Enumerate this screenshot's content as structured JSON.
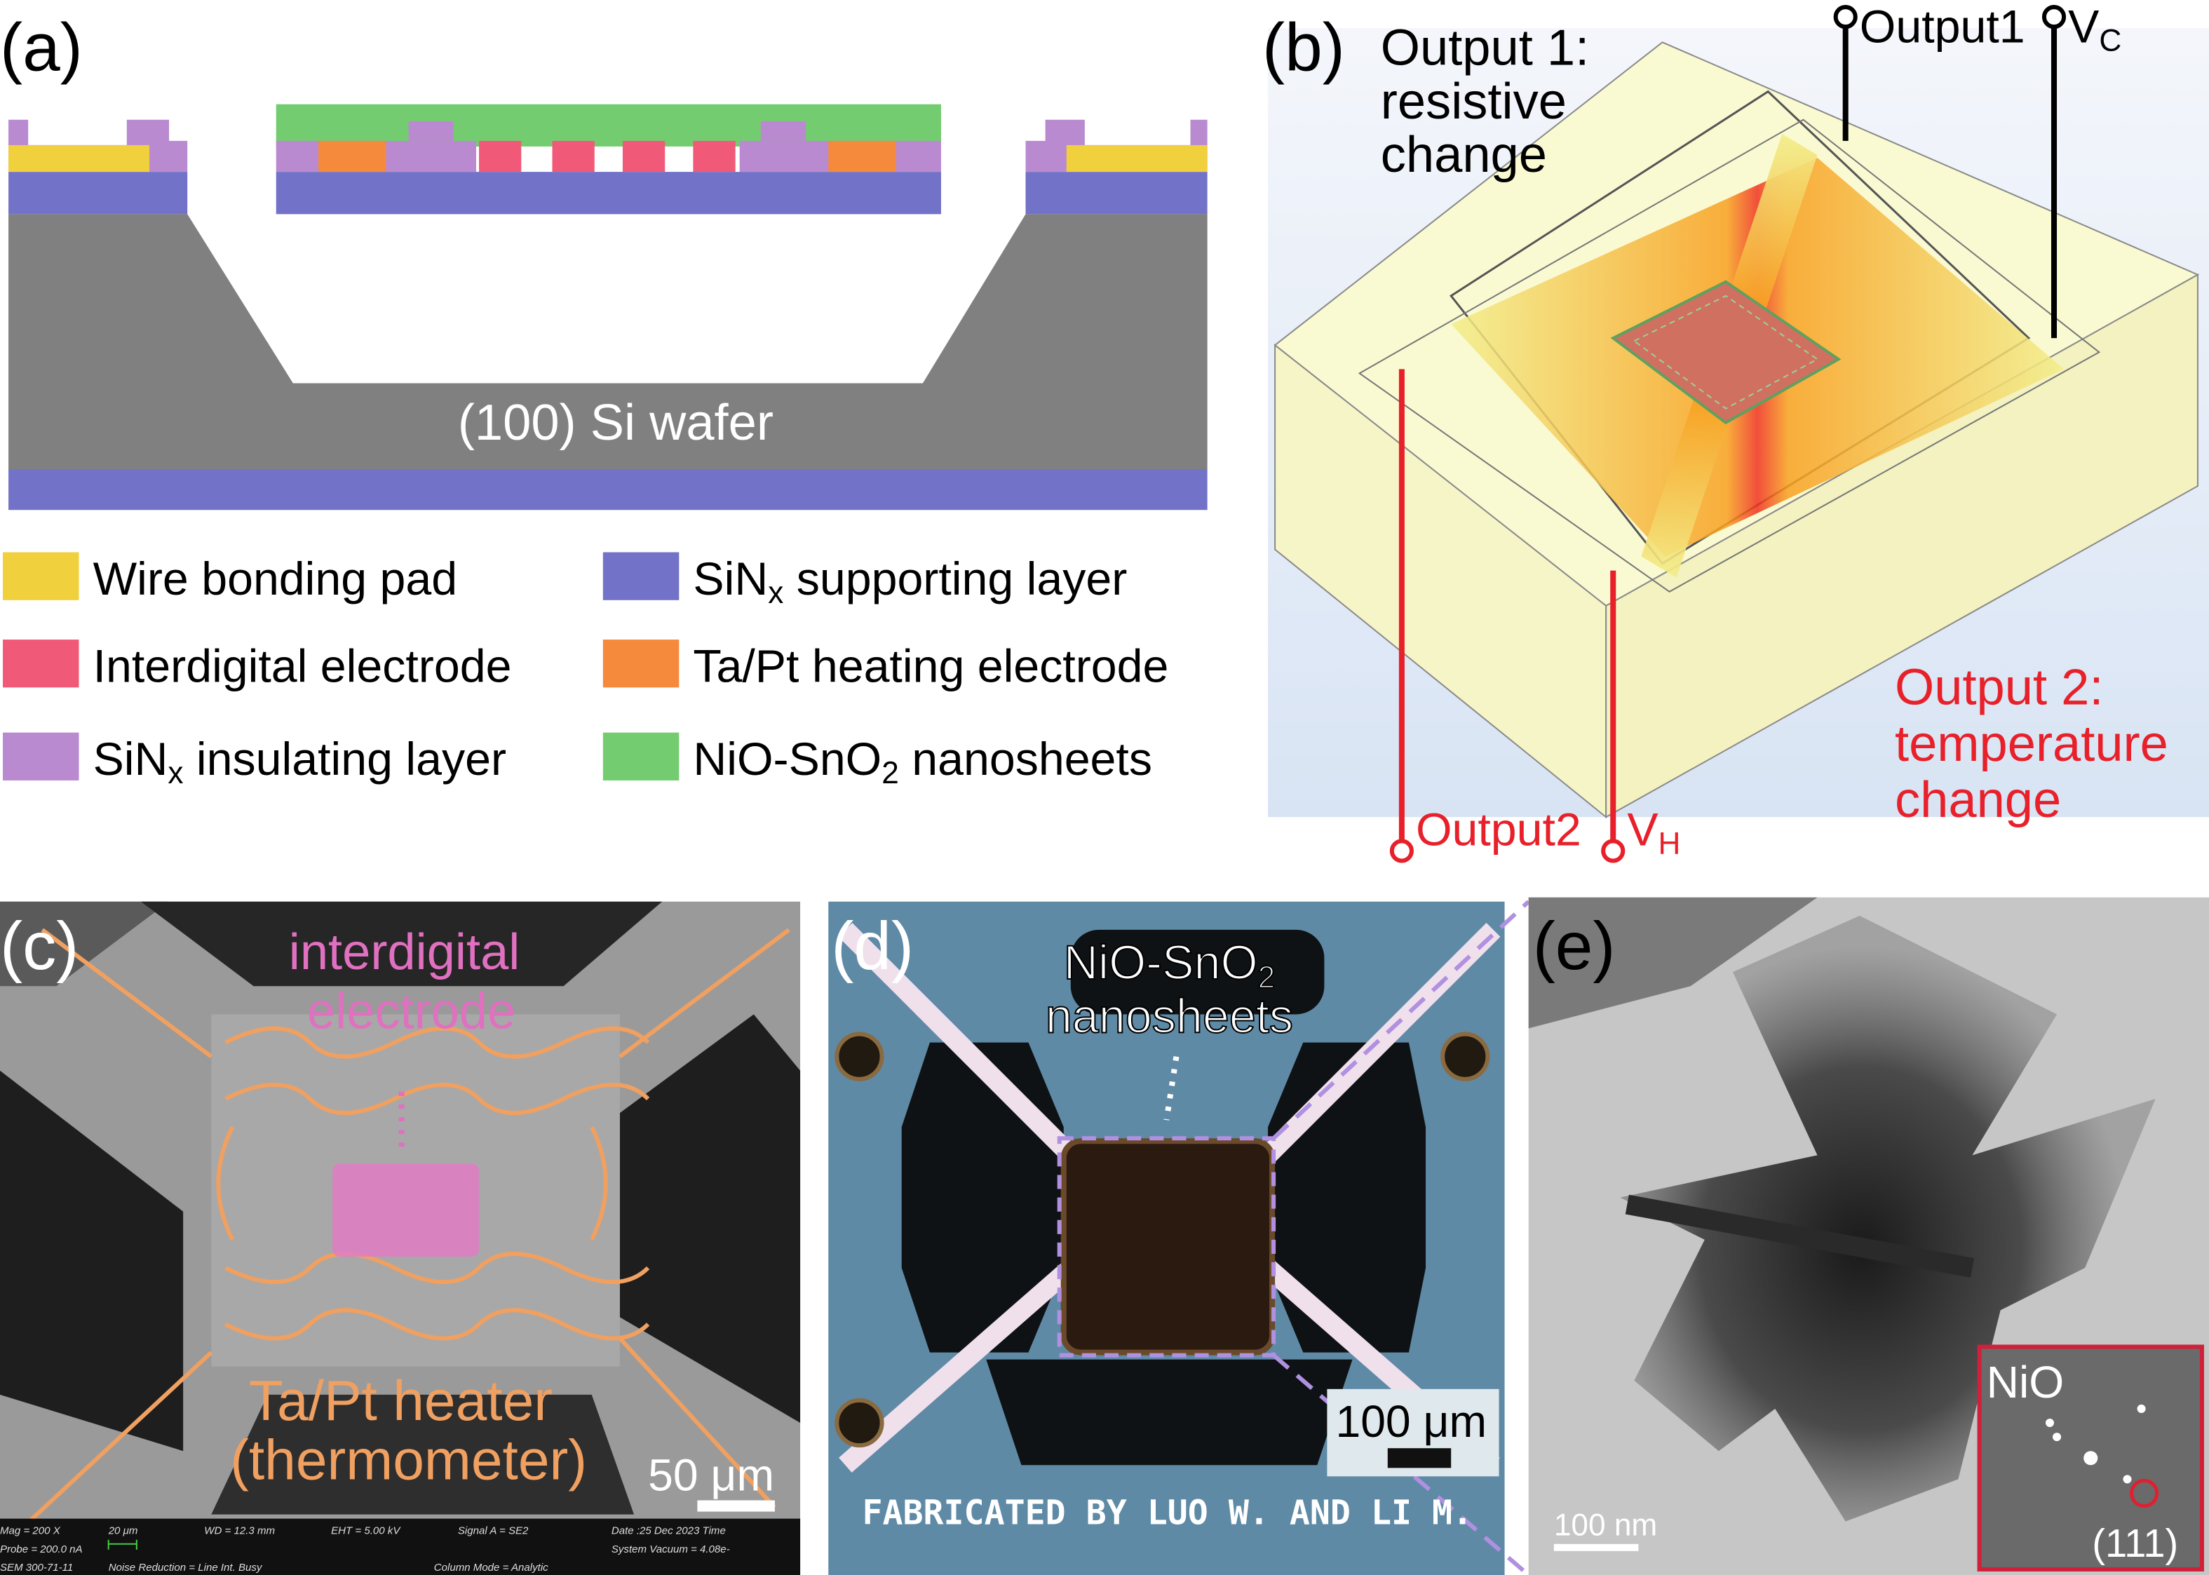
{
  "panel_a": {
    "label": "(a)",
    "wafer_label": "(100) Si wafer",
    "legend": [
      {
        "text": "Wire bonding pad",
        "sub": "",
        "tail": "",
        "color": "#f0d03c"
      },
      {
        "text": "Interdigital electrode",
        "sub": "",
        "tail": "",
        "color": "#f05a78"
      },
      {
        "text": "SiN",
        "sub": "x",
        "tail": " insulating layer",
        "color": "#b98ad0"
      },
      {
        "text": "SiN",
        "sub": "x",
        "tail": " supporting layer",
        "color": "#7272c8"
      },
      {
        "text": "Ta/Pt heating electrode",
        "sub": "",
        "tail": "",
        "color": "#f58a3c"
      },
      {
        "text": "NiO-SnO",
        "sub": "2",
        "tail": " nanosheets",
        "color": "#74cc70"
      }
    ]
  },
  "panel_b": {
    "label": "(b)",
    "output1_title": [
      "Output 1:",
      "resistive",
      "change"
    ],
    "output2_title": [
      "Output 2:",
      "temperature",
      "change"
    ],
    "terminal_output1": "Output1",
    "terminal_vc": "V",
    "terminal_vc_sub": "C",
    "terminal_output2": "Output2",
    "terminal_vh": "V",
    "terminal_vh_sub": "H"
  },
  "panel_c": {
    "label": "(c)",
    "electrode_label": [
      "interdigital",
      "electrode"
    ],
    "heater_label": [
      "Ta/Pt heater",
      "(thermometer)"
    ],
    "scale_bar": "50 μm",
    "sem_info": {
      "mag": "Mag =   200 X",
      "bar": "20 μm",
      "wd": "WD = 12.3 mm",
      "eht": "EHT =  5.00 kV",
      "signal": "Signal A = SE2",
      "date": "Date :25 Dec 2023   Time",
      "probe": "Probe =  200.0 nA",
      "vacuum": "System Vacuum = 4.08e-",
      "sem": "SEM 300-71-11",
      "noise": "Noise Reduction = Line Int. Busy",
      "column": "Column Mode = Analytic"
    }
  },
  "panel_d": {
    "label": "(d)",
    "material_label": "NiO-SnO",
    "material_sub": "2",
    "material_label2": "nanosheets",
    "fab_text": "FABRICATED BY LUO W. AND LI M.",
    "scale_bar": "100 μm"
  },
  "panel_e": {
    "label": "(e)",
    "scale_bar": "100 nm",
    "inset_label": "NiO",
    "inset_plane": "(111)"
  },
  "colors": {
    "si_wafer": "#808080",
    "supporting": "#7272c8",
    "output2_red": "#e8202a",
    "heater_orange": "#f0a060",
    "electrode_pink": "#e070c0"
  }
}
